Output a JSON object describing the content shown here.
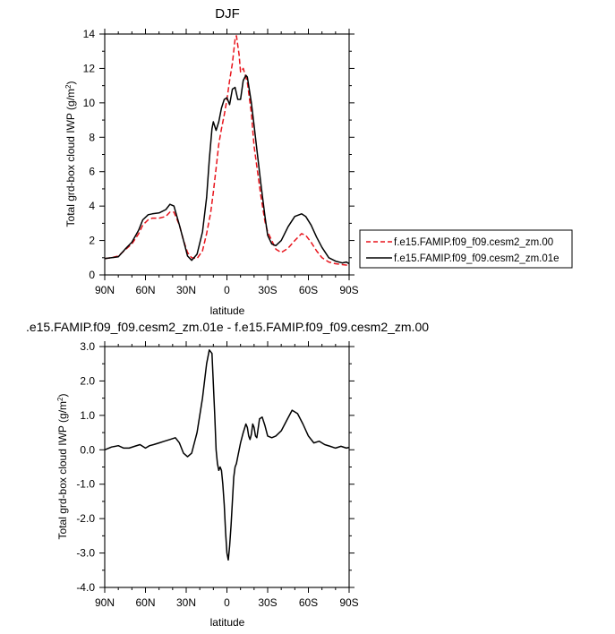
{
  "chart_data": [
    {
      "type": "line",
      "title": "DJF",
      "xlabel": "latitude",
      "ylabel": "Total grd-box cloud IWP (g/m",
      "ylabel_sup": "2",
      "ylabel_end": ")",
      "xlim": [
        90,
        -90
      ],
      "ylim": [
        0,
        14
      ],
      "xticks": [
        90,
        60,
        30,
        0,
        -30,
        -60,
        -90
      ],
      "xtick_labels": [
        "90N",
        "60N",
        "30N",
        "0",
        "30S",
        "60S",
        "90S"
      ],
      "yticks": [
        0,
        2,
        4,
        6,
        8,
        10,
        12,
        14
      ],
      "ytick_labels": [
        "0",
        "2",
        "4",
        "6",
        "8",
        "10",
        "12",
        "14"
      ],
      "legend_position": "right",
      "series": [
        {
          "name": "f.e15.FAMIP.f09_f09.cesm2_zm.00",
          "color": "#e8141c",
          "dash": "dashed",
          "x": [
            90,
            85,
            80,
            75,
            70,
            65,
            62,
            58,
            55,
            50,
            45,
            42,
            39,
            35,
            32,
            29,
            26,
            22,
            18,
            15,
            12,
            10,
            8,
            6,
            4,
            2,
            0,
            -2,
            -4,
            -6,
            -7,
            -9,
            -10,
            -12,
            -15,
            -18,
            -20,
            -22,
            -25,
            -28,
            -30,
            -33,
            -36,
            -40,
            -45,
            -50,
            -55,
            -58,
            -62,
            -66,
            -70,
            -75,
            -80,
            -85,
            -90
          ],
          "y": [
            0.95,
            1.0,
            1.1,
            1.45,
            1.8,
            2.4,
            2.9,
            3.2,
            3.3,
            3.3,
            3.4,
            3.65,
            3.65,
            2.9,
            2.0,
            1.3,
            1.0,
            0.95,
            1.4,
            2.4,
            3.6,
            4.8,
            6.2,
            7.6,
            8.5,
            9.3,
            10.2,
            11.3,
            12.3,
            13.7,
            13.9,
            12.8,
            11.8,
            12.0,
            11.2,
            9.4,
            7.5,
            6.3,
            4.6,
            3.1,
            2.5,
            2.0,
            1.5,
            1.3,
            1.55,
            2.0,
            2.4,
            2.3,
            1.9,
            1.4,
            1.0,
            0.75,
            0.65,
            0.6,
            0.55
          ]
        },
        {
          "name": "f.e15.FAMIP.f09_f09.cesm2_zm.01e",
          "color": "#000000",
          "dash": "solid",
          "x": [
            90,
            85,
            80,
            75,
            70,
            65,
            62,
            58,
            55,
            50,
            45,
            42,
            39,
            35,
            32,
            29,
            26,
            22,
            18,
            15,
            13,
            11,
            10,
            8,
            6,
            4,
            2,
            0,
            -2,
            -4,
            -6,
            -8,
            -10,
            -12,
            -14,
            -15,
            -16,
            -18,
            -20,
            -22,
            -25,
            -28,
            -30,
            -33,
            -36,
            -40,
            -45,
            -50,
            -55,
            -58,
            -62,
            -66,
            -70,
            -75,
            -80,
            -85,
            -88,
            -90
          ],
          "y": [
            0.95,
            1.0,
            1.05,
            1.5,
            1.9,
            2.6,
            3.2,
            3.5,
            3.55,
            3.6,
            3.8,
            4.1,
            4.0,
            2.9,
            2.0,
            1.1,
            0.85,
            1.2,
            2.5,
            4.5,
            6.7,
            8.5,
            8.9,
            8.4,
            8.9,
            9.7,
            10.2,
            10.3,
            9.9,
            10.8,
            10.9,
            10.2,
            10.2,
            11.3,
            11.6,
            11.5,
            11.0,
            10.0,
            8.7,
            7.3,
            5.3,
            3.4,
            2.3,
            1.8,
            1.7,
            2.0,
            2.8,
            3.4,
            3.55,
            3.4,
            2.9,
            2.2,
            1.6,
            1.0,
            0.8,
            0.7,
            0.75,
            0.65
          ]
        }
      ]
    },
    {
      "type": "line",
      "title": ".e15.FAMIP.f09_f09.cesm2_zm.01e - f.e15.FAMIP.f09_f09.cesm2_zm.00",
      "xlabel": "latitude",
      "ylabel": "Total grd-box cloud IWP (g/m",
      "ylabel_sup": "2",
      "ylabel_end": ")",
      "xlim": [
        90,
        -90
      ],
      "ylim": [
        -4,
        3
      ],
      "xticks": [
        90,
        60,
        30,
        0,
        -30,
        -60,
        -90
      ],
      "xtick_labels": [
        "90N",
        "60N",
        "30N",
        "0",
        "30S",
        "60S",
        "90S"
      ],
      "yticks": [
        3,
        2,
        1,
        0,
        -1,
        -2,
        -3,
        -4
      ],
      "ytick_labels": [
        "3.0",
        "2.0",
        "1.0",
        "0.0",
        "-1.0",
        "-2.0",
        "-3.0",
        "-4.0"
      ],
      "series": [
        {
          "color": "#000000",
          "dash": "solid",
          "x": [
            90,
            85,
            80,
            76,
            72,
            68,
            64,
            60,
            57,
            54,
            50,
            46,
            42,
            38,
            35,
            32,
            29,
            26,
            22,
            18,
            15,
            13,
            11,
            9,
            8,
            7,
            6,
            5,
            4,
            3,
            2,
            1,
            0,
            -1,
            -2,
            -3,
            -4,
            -5,
            -6,
            -7,
            -8,
            -10,
            -12,
            -14,
            -15,
            -16,
            -17,
            -18,
            -19,
            -20,
            -21,
            -22,
            -24,
            -26,
            -28,
            -30,
            -33,
            -36,
            -40,
            -44,
            -48,
            -52,
            -56,
            -60,
            -64,
            -68,
            -72,
            -76,
            -80,
            -84,
            -88,
            -90
          ],
          "y": [
            0.0,
            0.08,
            0.12,
            0.05,
            0.05,
            0.1,
            0.15,
            0.05,
            0.12,
            0.15,
            0.2,
            0.25,
            0.3,
            0.35,
            0.2,
            -0.1,
            -0.2,
            -0.1,
            0.5,
            1.5,
            2.5,
            2.9,
            2.8,
            1.0,
            0.0,
            -0.4,
            -0.6,
            -0.5,
            -0.6,
            -1.0,
            -1.6,
            -2.4,
            -3.0,
            -3.2,
            -2.8,
            -2.2,
            -1.5,
            -0.8,
            -0.5,
            -0.4,
            -0.2,
            0.2,
            0.5,
            0.75,
            0.65,
            0.4,
            0.3,
            0.45,
            0.75,
            0.65,
            0.4,
            0.35,
            0.9,
            0.95,
            0.7,
            0.4,
            0.35,
            0.4,
            0.55,
            0.85,
            1.15,
            1.05,
            0.75,
            0.4,
            0.2,
            0.25,
            0.15,
            0.1,
            0.05,
            0.1,
            0.05,
            0.07
          ]
        }
      ]
    }
  ]
}
